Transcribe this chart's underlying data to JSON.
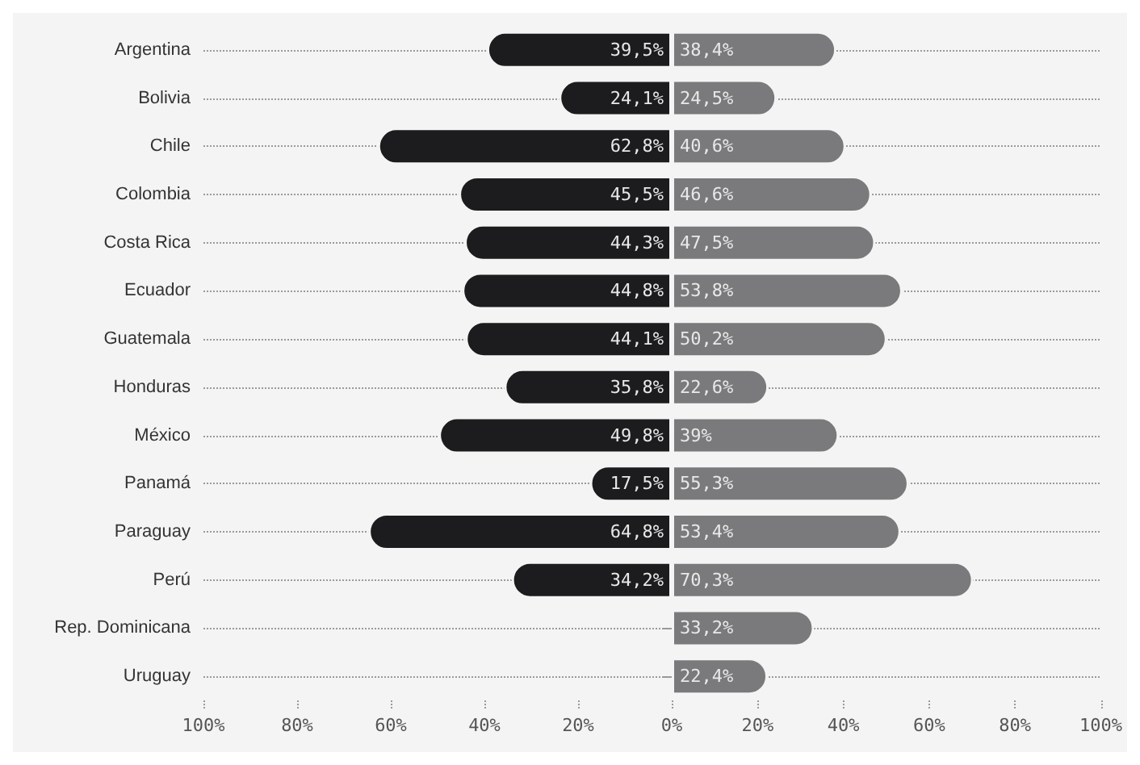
{
  "chart_data": [
    {
      "type": "bar",
      "orientation": "horizontal",
      "categories": [
        "Argentina",
        "Bolivia",
        "Chile",
        "Colombia",
        "Costa Rica",
        "Ecuador",
        "Guatemala",
        "Honduras",
        "México",
        "Panamá",
        "Paraguay",
        "Perú",
        "Rep. Dominicana",
        "Uruguay"
      ],
      "series": [
        {
          "color": "#1c1c1e",
          "values": [
            39.5,
            24.1,
            62.8,
            45.5,
            44.3,
            44.8,
            44.1,
            35.8,
            49.8,
            17.5,
            64.8,
            34.2,
            null,
            null
          ],
          "value_labels": [
            "39,5%",
            "24,1%",
            "62,8%",
            "45,5%",
            "44,3%",
            "44,8%",
            "44,1%",
            "35,8%",
            "49,8%",
            "17,5%",
            "64,8%",
            "34,2%",
            null,
            null
          ]
        }
      ],
      "xlim": [
        100,
        0
      ],
      "xticks": [
        {
          "value": 100,
          "label": "100%"
        },
        {
          "value": 80,
          "label": "80%"
        },
        {
          "value": 60,
          "label": "60%"
        },
        {
          "value": 40,
          "label": "40%"
        },
        {
          "value": 20,
          "label": "20%"
        },
        {
          "value": 0,
          "label": "0%"
        }
      ],
      "grid": "y"
    },
    {
      "type": "bar",
      "orientation": "horizontal",
      "categories": [
        null,
        null,
        null,
        null,
        null,
        null,
        null,
        null,
        null,
        null,
        null,
        null,
        null,
        null
      ],
      "series": [
        {
          "color": "#7a7a7c",
          "values": [
            38.4,
            24.5,
            40.6,
            46.6,
            47.5,
            53.8,
            50.2,
            22.6,
            39,
            55.3,
            53.4,
            70.3,
            33.2,
            22.4
          ],
          "value_labels": [
            "38,4%",
            "24,5%",
            "40,6%",
            "46,6%",
            "47,5%",
            "53,8%",
            "50,2%",
            "22,6%",
            "39%",
            "55,3%",
            "53,4%",
            "70,3%",
            "33,2%",
            "22,4%"
          ]
        }
      ],
      "xlim": [
        0,
        100
      ],
      "xticks": [
        {
          "value": 0,
          "label": null
        },
        {
          "value": 20,
          "label": "20%"
        },
        {
          "value": 40,
          "label": "40%"
        },
        {
          "value": 60,
          "label": "60%"
        },
        {
          "value": 80,
          "label": "80%"
        },
        {
          "value": 100,
          "label": "100%"
        }
      ],
      "grid": "y",
      "tick_labels": "x"
    }
  ]
}
